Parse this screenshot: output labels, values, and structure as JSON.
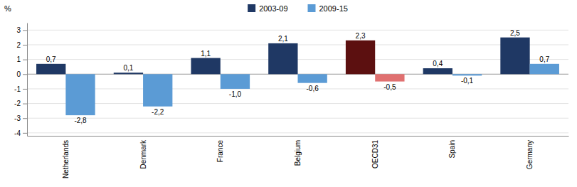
{
  "chart_data": {
    "type": "bar",
    "ylabel": "%",
    "categories": [
      "Netherlands",
      "Denmark",
      "France",
      "Belgium",
      "OECD31",
      "Spain",
      "Germany"
    ],
    "series": [
      {
        "name": "2003-09",
        "color": "#1F3864",
        "colors": [
          "#1F3864",
          "#1F3864",
          "#1F3864",
          "#1F3864",
          "#5C1010",
          "#1F3864",
          "#1F3864"
        ],
        "values": [
          0.7,
          0.1,
          1.1,
          2.1,
          2.3,
          0.4,
          2.5
        ],
        "value_labels": [
          "0,7",
          "0,1",
          "1,1",
          "2,1",
          "2,3",
          "0,4",
          "2,5"
        ]
      },
      {
        "name": "2009-15",
        "color": "#5B9BD5",
        "colors": [
          "#5B9BD5",
          "#5B9BD5",
          "#5B9BD5",
          "#5B9BD5",
          "#E07070",
          "#5B9BD5",
          "#5B9BD5"
        ],
        "values": [
          -2.8,
          -2.2,
          -1.0,
          -0.6,
          -0.5,
          -0.1,
          0.7
        ],
        "value_labels": [
          "-2,8",
          "-2,2",
          "-1,0",
          "-0,6",
          "-0,5",
          "-0,1",
          "0,7"
        ]
      }
    ],
    "ylim": [
      -4.2,
      3.5
    ],
    "yticks": [
      -4,
      -3,
      -2,
      -1,
      0,
      1,
      2,
      3
    ],
    "grid": true,
    "legend": "top",
    "data_labels": true
  }
}
